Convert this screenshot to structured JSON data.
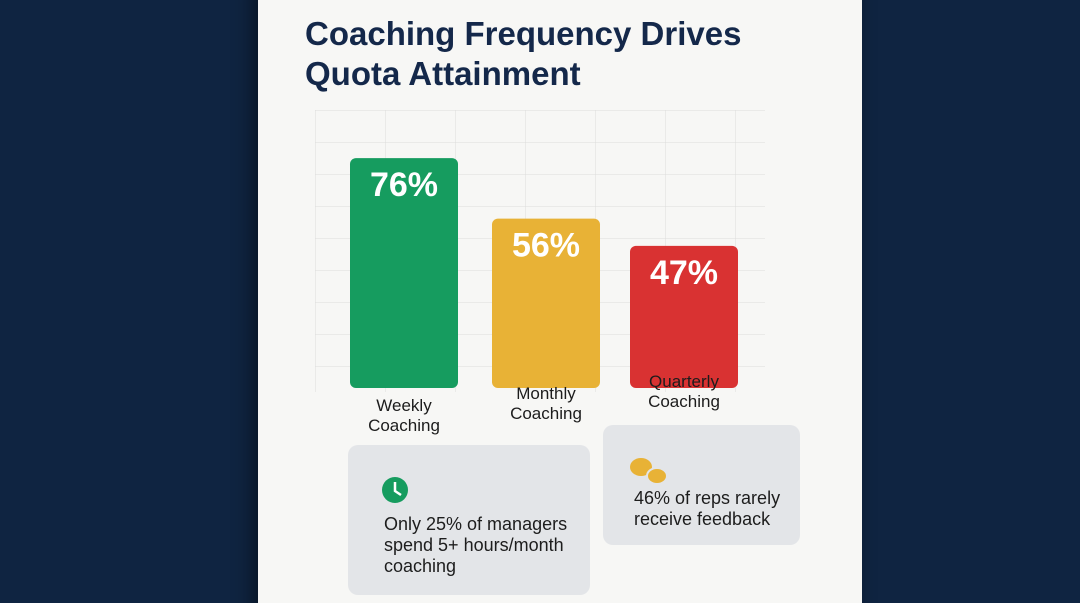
{
  "chart_data": {
    "type": "bar",
    "title": "Coaching Frequency Drives Quota Attainment",
    "categories": [
      "Weekly Coaching",
      "Monthly Coaching",
      "Quarterly Coaching"
    ],
    "values": [
      76,
      56,
      47
    ],
    "value_labels": [
      "76%",
      "56%",
      "47%"
    ],
    "colors": [
      "#169c5f",
      "#e8b236",
      "#d93232"
    ],
    "ylim": [
      0,
      80
    ],
    "annotations": [
      "Only 25% of managers spend 5+ hours/month coaching",
      "46% of reps rarely receive feedback"
    ]
  }
}
